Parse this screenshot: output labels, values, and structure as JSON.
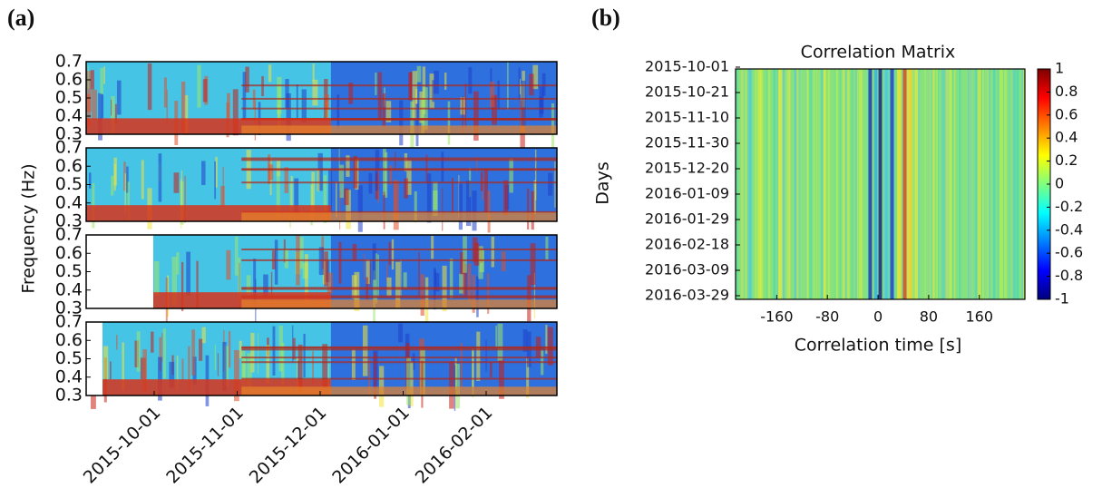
{
  "panel_a": {
    "label": "(a)",
    "ylabel": "Frequency (Hz)",
    "ylim": [
      0.3,
      0.7
    ],
    "yticks": [
      0.3,
      0.4,
      0.5,
      0.6,
      0.7
    ],
    "xticks": [
      "2015-10-01",
      "2015-11-01",
      "2015-12-01",
      "2016-01-01",
      "2016-02-01"
    ]
  },
  "panel_b": {
    "label": "(b)",
    "title": "Correlation Matrix",
    "xlabel": "Correlation time [s]",
    "ylabel": "Days",
    "xlim": [
      -225,
      232
    ],
    "xticks": [
      -160,
      -80,
      0,
      80,
      160
    ],
    "yticks": [
      "2015-10-01",
      "2015-10-21",
      "2015-11-10",
      "2015-11-30",
      "2015-12-20",
      "2016-01-09",
      "2016-01-29",
      "2016-02-18",
      "2016-03-09",
      "2016-03-29"
    ],
    "clim": [
      -1,
      1
    ],
    "cticks": [
      1,
      0.8,
      0.6,
      0.4,
      0.2,
      0,
      -0.2,
      -0.4,
      -0.6,
      -0.8,
      -1
    ]
  }
}
